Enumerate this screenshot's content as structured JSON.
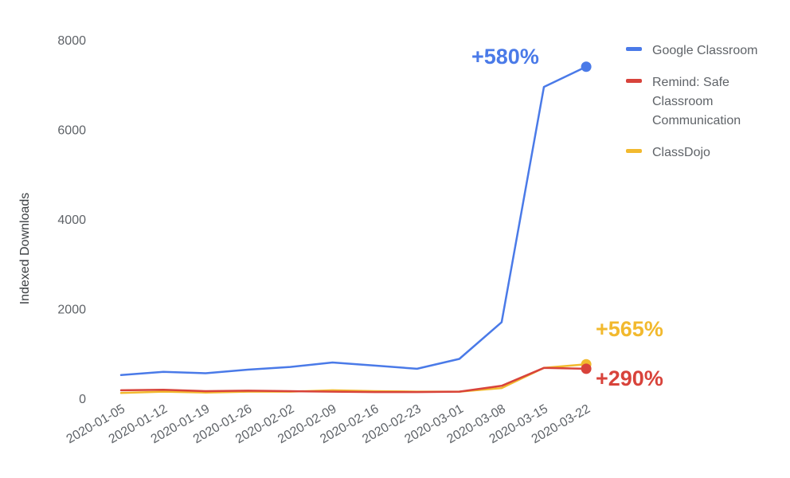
{
  "chart_data": {
    "type": "line",
    "title": "",
    "xlabel": "",
    "ylabel": "Indexed Downloads",
    "ylim": [
      0,
      8000
    ],
    "yticks": [
      "0",
      "2000",
      "4000",
      "6000",
      "8000"
    ],
    "categories": [
      "2020-01-05",
      "2020-01-12",
      "2020-01-19",
      "2020-01-26",
      "2020-02-02",
      "2020-02-09",
      "2020-02-16",
      "2020-02-23",
      "2020-03-01",
      "2020-03-08",
      "2020-03-15",
      "2020-03-22"
    ],
    "grid": false,
    "legend_position": "right",
    "series": [
      {
        "name": "Google Classroom",
        "color": "#4a7ae8",
        "values": [
          520,
          590,
          560,
          640,
          700,
          800,
          730,
          660,
          880,
          1700,
          6950,
          7400
        ],
        "annotation": "+580%"
      },
      {
        "name": "Remind: Safe Classroom Communication",
        "color": "#d8433b",
        "values": [
          180,
          190,
          160,
          170,
          160,
          150,
          140,
          140,
          150,
          280,
          680,
          660
        ],
        "annotation": "+290%"
      },
      {
        "name": "ClassDojo",
        "color": "#f2b92e",
        "values": [
          120,
          150,
          130,
          150,
          150,
          180,
          160,
          150,
          150,
          230,
          680,
          760
        ],
        "annotation": "+565%"
      }
    ]
  },
  "legend": {
    "google": [
      "Google Classroom"
    ],
    "remind": [
      "Remind: Safe",
      "Classroom",
      "Communication"
    ],
    "classdojo": [
      "ClassDojo"
    ]
  }
}
